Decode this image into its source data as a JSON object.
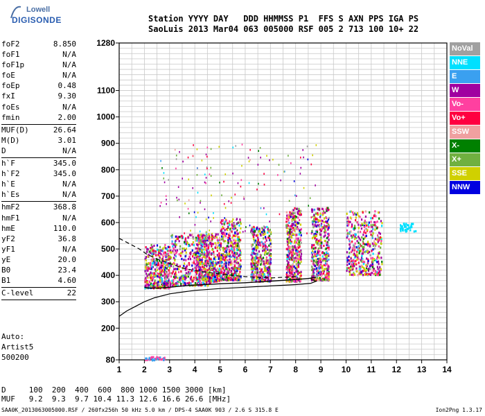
{
  "logo": {
    "line1": "Lowell",
    "line2": "DIGISONDE"
  },
  "header": {
    "row1": "Station YYYY DAY   DDD HHMMSS P1  FFS S AXN PPS IGA PS",
    "row2": "SaoLuis 2013 Mar04 063 005000 RSF 005 2 713 100 10+ 22"
  },
  "params": [
    {
      "name": "foF2",
      "value": "8.850"
    },
    {
      "name": "foF1",
      "value": "N/A"
    },
    {
      "name": "foF1p",
      "value": "N/A"
    },
    {
      "name": "foE",
      "value": "N/A"
    },
    {
      "name": "foEp",
      "value": "0.48"
    },
    {
      "name": "fxI",
      "value": "9.30"
    },
    {
      "name": "foEs",
      "value": "N/A"
    },
    {
      "name": "fmin",
      "value": "2.00"
    },
    {
      "sep": true
    },
    {
      "name": "MUF(D)",
      "value": "26.64"
    },
    {
      "name": "M(D)",
      "value": "3.01"
    },
    {
      "name": "D",
      "value": "N/A"
    },
    {
      "sep": true
    },
    {
      "name": "h`F",
      "value": "345.0"
    },
    {
      "name": "h`F2",
      "value": "345.0"
    },
    {
      "name": "h`E",
      "value": "N/A"
    },
    {
      "name": "h`Es",
      "value": "N/A"
    },
    {
      "sep": true
    },
    {
      "name": "hmF2",
      "value": "368.8"
    },
    {
      "name": "hmF1",
      "value": "N/A"
    },
    {
      "name": "hmE",
      "value": "110.0"
    },
    {
      "name": "yF2",
      "value": "36.8"
    },
    {
      "name": "yF1",
      "value": "N/A"
    },
    {
      "name": "yE",
      "value": "20.0"
    },
    {
      "name": "B0",
      "value": "23.4"
    },
    {
      "name": "B1",
      "value": "4.60"
    },
    {
      "sep": true
    },
    {
      "name": "C-level",
      "value": "22"
    },
    {
      "sep": true
    }
  ],
  "auto": {
    "line1": "Auto:",
    "line2": "Artist5",
    "line3": "500200"
  },
  "muf_table": {
    "d_row": "D     100  200  400  600  800 1000 1500 3000 [km]",
    "muf_row": "MUF   9.2  9.3  9.7 10.4 11.3 12.6 16.6 26.6 [MHz]"
  },
  "footer": {
    "left": "SAA0K_2013063005000.RSF / 260fx256h 50 kHz 5.0 km / DPS-4 SAA0K 903 / 2.6 S 315.8 E",
    "right": "Ion2Png 1.3.17"
  },
  "legend": [
    {
      "label": "NoVal",
      "color": "#a0a0a0"
    },
    {
      "label": "NNE",
      "color": "#00e0ff"
    },
    {
      "label": "E",
      "color": "#3aa0f0"
    },
    {
      "label": "W",
      "color": "#a000a0"
    },
    {
      "label": "Vo-",
      "color": "#ff40a0"
    },
    {
      "label": "Vo+",
      "color": "#ff0040"
    },
    {
      "label": "SSW",
      "color": "#f0a0a0"
    },
    {
      "label": "X-",
      "color": "#008000"
    },
    {
      "label": "X+",
      "color": "#70b040"
    },
    {
      "label": "SSE",
      "color": "#d0d000"
    },
    {
      "label": "NNW",
      "color": "#0000e0"
    }
  ],
  "chart_data": {
    "type": "scatter",
    "xlim": [
      1,
      14
    ],
    "ylim": [
      80,
      1280
    ],
    "x_ticks": [
      1,
      2,
      3,
      4,
      5,
      6,
      7,
      8,
      9,
      10,
      11,
      12,
      13,
      14
    ],
    "y_ticks": [
      80,
      200,
      300,
      400,
      500,
      600,
      700,
      800,
      900,
      1000,
      1100,
      1280
    ],
    "grid": true,
    "echo_clusters": [
      {
        "x": [
          2.0,
          3.0
        ],
        "y": [
          355,
          520
        ],
        "dense": true
      },
      {
        "x": [
          3.0,
          4.6
        ],
        "y": [
          365,
          560
        ],
        "dense": true
      },
      {
        "x": [
          4.0,
          5.0
        ],
        "y": [
          380,
          560
        ],
        "dense": true
      },
      {
        "x": [
          5.0,
          5.8
        ],
        "y": [
          385,
          620
        ],
        "dense": true
      },
      {
        "x": [
          6.2,
          7.0
        ],
        "y": [
          380,
          590
        ],
        "dense": true
      },
      {
        "x": [
          7.6,
          8.2
        ],
        "y": [
          380,
          660
        ],
        "dense": true
      },
      {
        "x": [
          8.6,
          9.3
        ],
        "y": [
          385,
          660
        ],
        "dense": true
      },
      {
        "x": [
          10.0,
          11.4
        ],
        "y": [
          405,
          650
        ],
        "dense": true
      },
      {
        "x": [
          12.1,
          12.8
        ],
        "y": [
          570,
          600
        ],
        "dense": false
      },
      {
        "x": [
          2.0,
          2.8
        ],
        "y": [
          82,
          95
        ],
        "dense": false
      }
    ],
    "profile_curve": {
      "x": [
        1.0,
        1.3,
        1.6,
        2.0,
        2.4,
        3.0,
        4.0,
        5.0,
        6.0,
        7.0,
        8.0,
        8.6,
        8.82,
        8.6
      ],
      "y": [
        245,
        265,
        280,
        300,
        315,
        330,
        343,
        350,
        355,
        360,
        365,
        370,
        378,
        385
      ]
    },
    "virtual_trace": {
      "x": [
        2.0,
        2.2,
        2.6,
        3.0,
        3.5,
        4.0,
        5.0,
        6.0,
        7.0,
        8.0,
        8.5,
        8.8
      ],
      "y": [
        355,
        352,
        352,
        355,
        360,
        363,
        368,
        372,
        378,
        384,
        388,
        392
      ]
    },
    "dashed_curve": {
      "x": [
        1.0,
        1.4,
        1.8,
        2.1,
        2.5,
        3.0,
        3.5,
        4.0,
        5.0,
        6.0,
        7.0,
        8.0
      ],
      "y": [
        540,
        520,
        500,
        480,
        462,
        445,
        428,
        418,
        405,
        395,
        390,
        395
      ]
    }
  }
}
